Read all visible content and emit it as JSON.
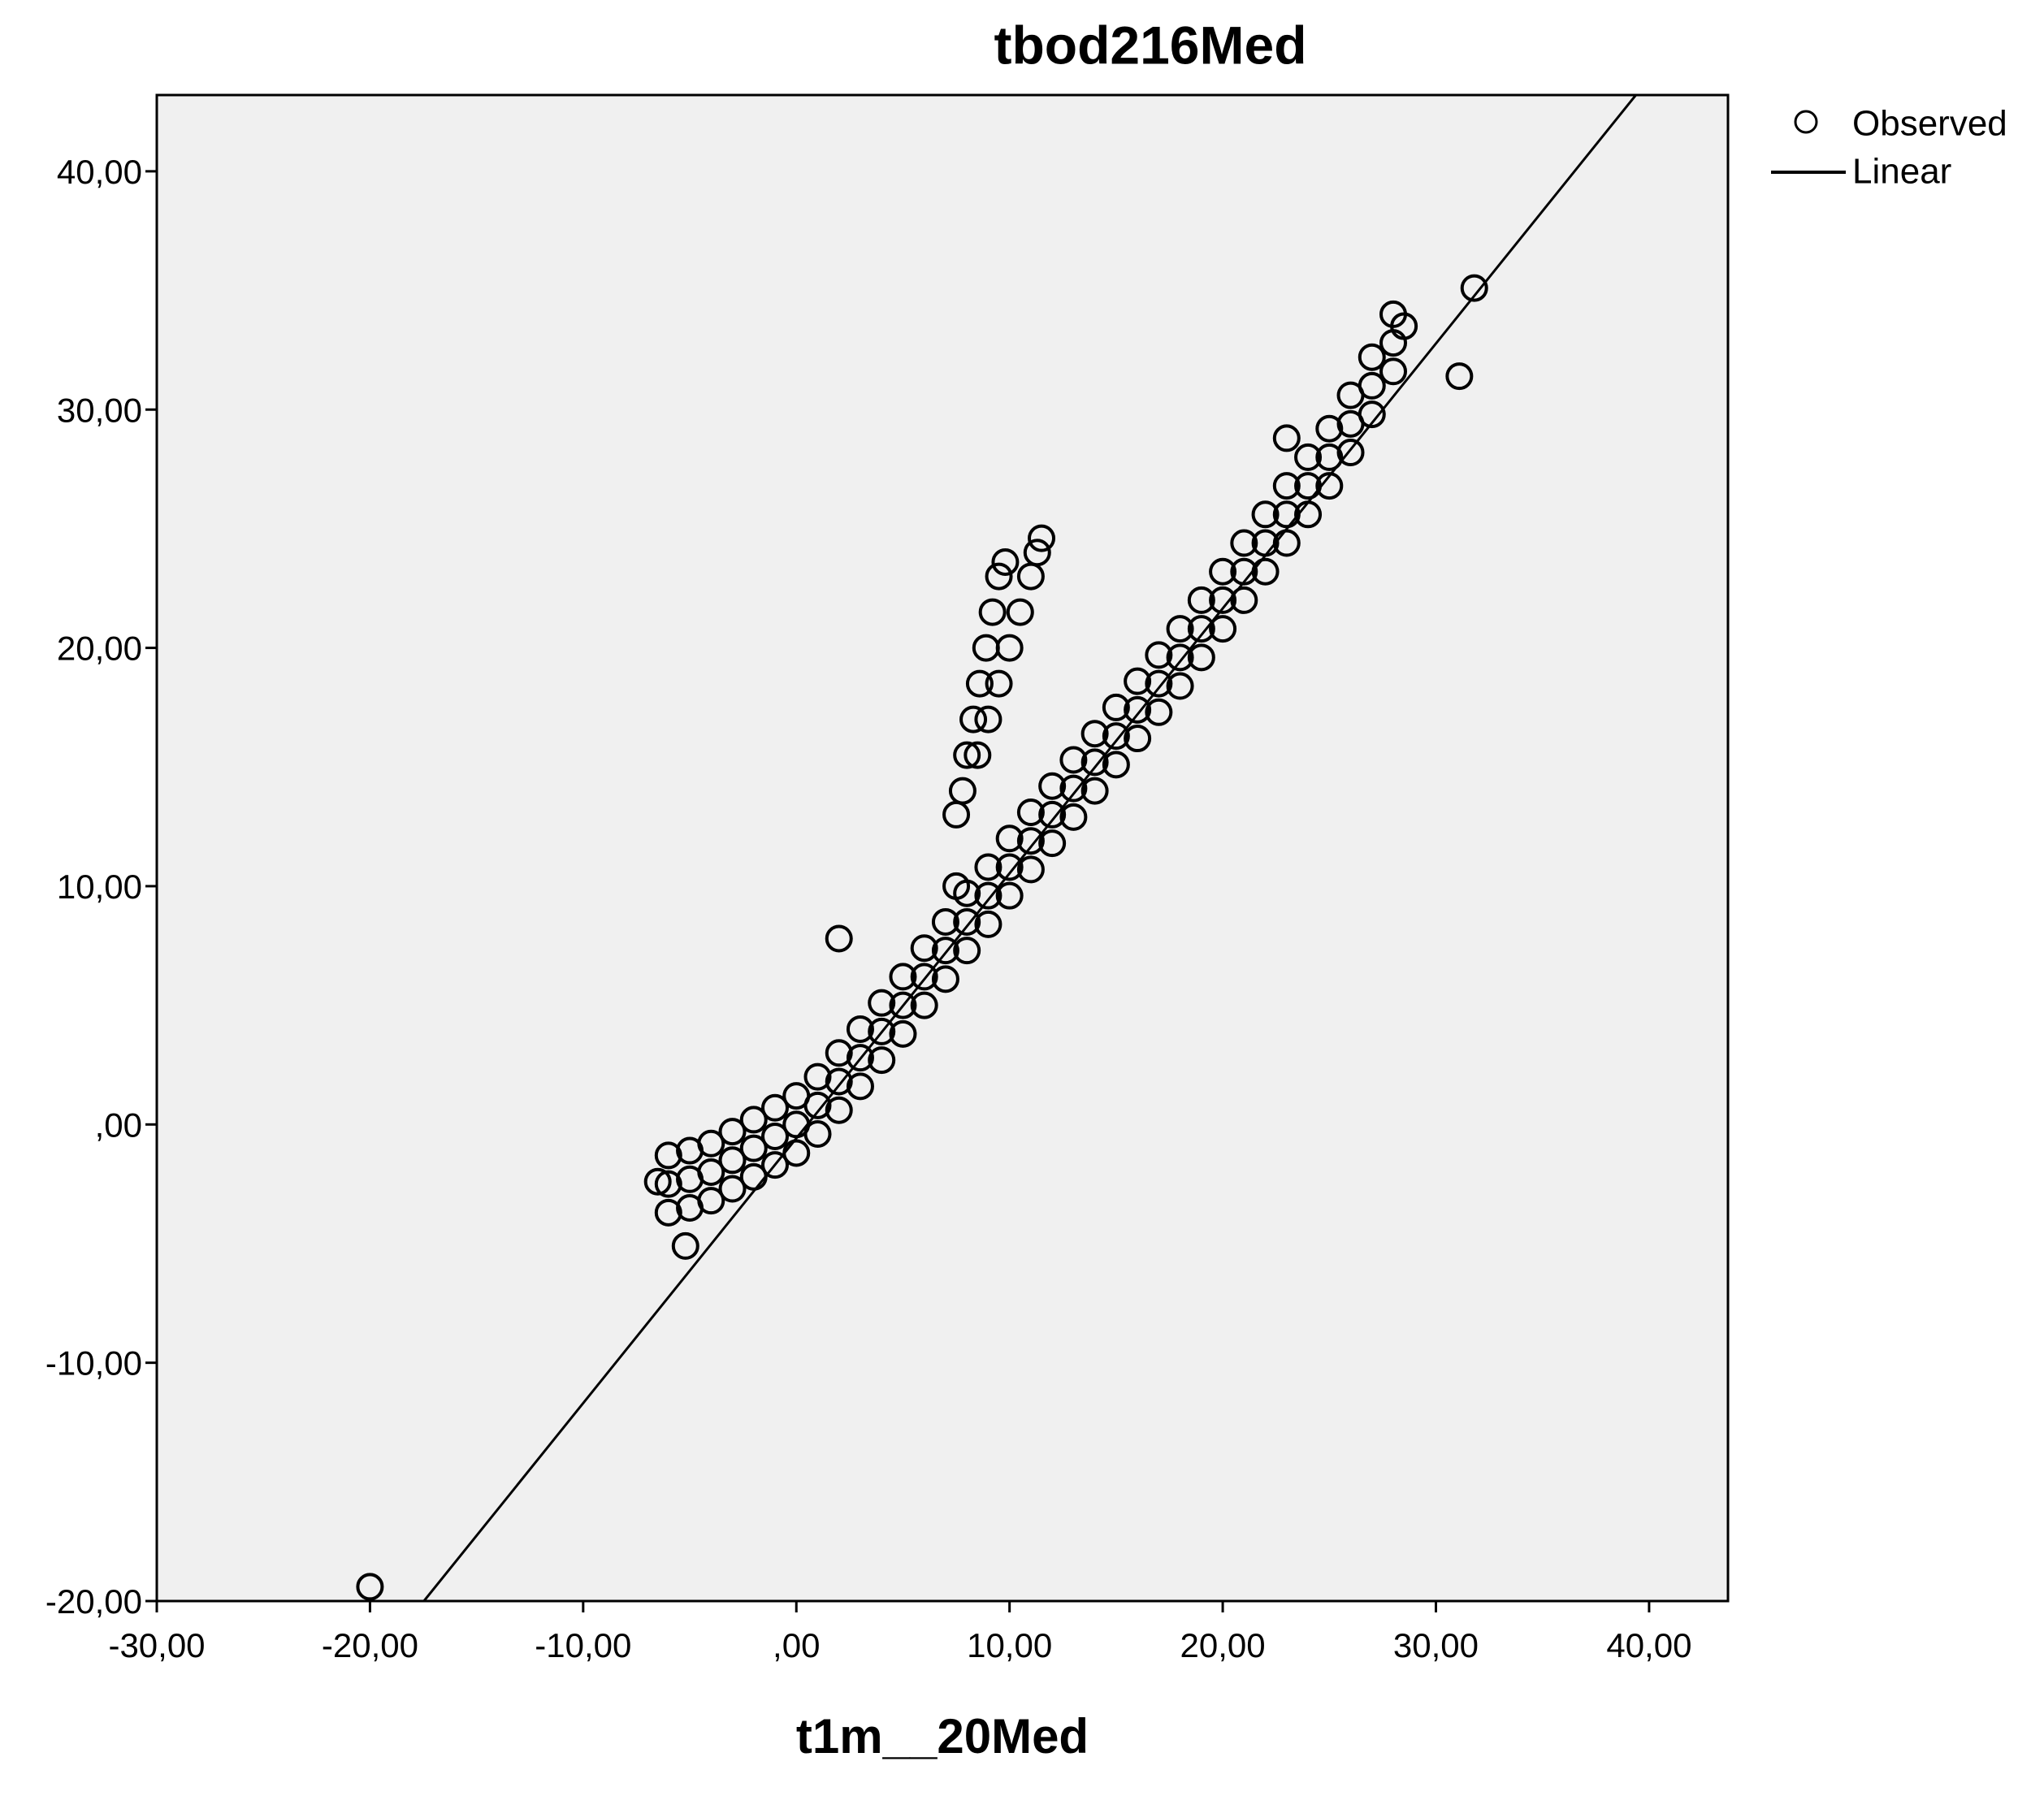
{
  "chart_data": {
    "type": "scatter",
    "title": "tbod216Med",
    "x_label": "t1m__20Med",
    "xlim": [
      -30,
      43.7
    ],
    "ylim": [
      -20,
      43.2
    ],
    "xticks": [
      {
        "value": -30,
        "label": "-30,00"
      },
      {
        "value": -20,
        "label": "-20,00"
      },
      {
        "value": -10,
        "label": "-10,00"
      },
      {
        "value": 0,
        "label": ",00"
      },
      {
        "value": 10,
        "label": "10,00"
      },
      {
        "value": 20,
        "label": "20,00"
      },
      {
        "value": 30,
        "label": "30,00"
      },
      {
        "value": 40,
        "label": "40,00"
      }
    ],
    "yticks": [
      {
        "value": -20,
        "label": "-20,00"
      },
      {
        "value": -10,
        "label": "-10,00"
      },
      {
        "value": 0,
        "label": ",00"
      },
      {
        "value": 10,
        "label": "10,00"
      },
      {
        "value": 20,
        "label": "20,00"
      },
      {
        "value": 30,
        "label": "30,00"
      },
      {
        "value": 40,
        "label": "40,00"
      }
    ],
    "series": [
      {
        "name": "Observed",
        "color": "#000000",
        "mark": "circle",
        "x": [
          -6,
          -5,
          -4,
          -3,
          -2,
          -1,
          0,
          1,
          2,
          3,
          4,
          5,
          6,
          7,
          8,
          9,
          10,
          11,
          12,
          13,
          14,
          15,
          16,
          17,
          18,
          19,
          20,
          21,
          22,
          23,
          24,
          25,
          26,
          27,
          28,
          -6,
          -5,
          -4,
          -3,
          -2,
          -1,
          0,
          1,
          2,
          3,
          4,
          5,
          6,
          7,
          8,
          9,
          10,
          11,
          12,
          13,
          14,
          15,
          16,
          17,
          18,
          19,
          20,
          21,
          22,
          23,
          24,
          25,
          26,
          27,
          28,
          -6,
          -5,
          -4,
          -3,
          -2,
          -1,
          0,
          1,
          2,
          3,
          4,
          5,
          6,
          7,
          8,
          9,
          10,
          11,
          12,
          13,
          14,
          15,
          16,
          17,
          18,
          19,
          20,
          21,
          22,
          23,
          24,
          25,
          26,
          27,
          28,
          7.5,
          7.8,
          8,
          8.3,
          8.6,
          8.9,
          9.2,
          9.5,
          9.8,
          8.5,
          9,
          9.5,
          10,
          10.5,
          11,
          11.3,
          11.5,
          -20,
          2,
          -5.2,
          31.8,
          31.1,
          7.5,
          23,
          -6.5,
          28.5
        ],
        "y": [
          -2.5,
          -2.3,
          -2,
          -1.5,
          -1,
          -0.5,
          0,
          0.8,
          1.8,
          2.8,
          3.9,
          5,
          6.2,
          7.3,
          8.5,
          9.6,
          10.8,
          11.9,
          13,
          14.1,
          15.2,
          16.3,
          17.4,
          18.5,
          19.6,
          20.8,
          22,
          23.2,
          24.4,
          25.6,
          26.8,
          28,
          29.4,
          31,
          32.8,
          -3.7,
          -3.5,
          -3.2,
          -2.7,
          -2.2,
          -1.7,
          -1.2,
          -0.4,
          0.6,
          1.6,
          2.7,
          3.8,
          5,
          6.1,
          7.3,
          8.4,
          9.6,
          10.7,
          11.8,
          12.9,
          14,
          15.1,
          16.2,
          17.3,
          18.4,
          19.6,
          20.8,
          22,
          23.2,
          24.4,
          25.6,
          26.8,
          28.2,
          29.8,
          31.6,
          -1.3,
          -1.1,
          -0.8,
          -0.3,
          0.2,
          0.7,
          1.2,
          2,
          3,
          4,
          5.1,
          6.2,
          7.4,
          8.5,
          9.7,
          10.8,
          12,
          13.1,
          14.2,
          15.3,
          16.4,
          17.5,
          18.6,
          19.7,
          20.8,
          22,
          23.2,
          24.4,
          25.6,
          26.8,
          28,
          29.2,
          30.6,
          32.2,
          34,
          13,
          14,
          15.5,
          17,
          18.5,
          20,
          21.5,
          23,
          23.6,
          15.5,
          17,
          18.5,
          20,
          21.5,
          23,
          24,
          24.6,
          -19.4,
          7.8,
          -5.1,
          35.1,
          31.4,
          10,
          28.8,
          -2.4,
          33.5
        ]
      },
      {
        "name": "Linear",
        "color": "#000000",
        "mark": "line",
        "x": [
          -17.47,
          39.38
        ],
        "y": [
          -20,
          43.2
        ]
      }
    ]
  }
}
